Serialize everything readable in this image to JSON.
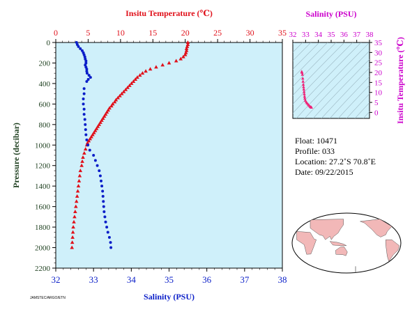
{
  "colors": {
    "temperature": "#e0101a",
    "salinity": "#0a1ec8",
    "pressure_axis": "#1f4020",
    "inset_axis": "#cc00cc",
    "inset_points": "#ee2277",
    "plot_bg": "#cff0fa",
    "map_ocean": "#ffffff",
    "map_land": "#f2b8b8"
  },
  "chart_data": [
    {
      "type": "scatter",
      "title_top": "Insitu Temperature (℃)",
      "xlabel_bottom": "Salinity (PSU)",
      "ylabel": "Pressure (decibar)",
      "temperature_axis": {
        "min": 0,
        "max": 35,
        "ticks": [
          "0",
          "5",
          "10",
          "15",
          "20",
          "25",
          "30",
          "35"
        ]
      },
      "salinity_axis": {
        "min": 32,
        "max": 38,
        "ticks": [
          "32",
          "33",
          "34",
          "35",
          "36",
          "37",
          "38"
        ]
      },
      "pressure_axis": {
        "min": 0,
        "max": 2200,
        "ticks": [
          "0",
          "200",
          "400",
          "600",
          "800",
          "1000",
          "1200",
          "1400",
          "1600",
          "1800",
          "2000",
          "2200"
        ],
        "inverted": true
      },
      "series": [
        {
          "variable": "temperature",
          "marker": "triangle",
          "points": [
            [
              20.4,
              0
            ],
            [
              20.4,
              20
            ],
            [
              20.3,
              40
            ],
            [
              20.2,
              60
            ],
            [
              20.2,
              80
            ],
            [
              20.1,
              100
            ],
            [
              20.0,
              120
            ],
            [
              19.7,
              140
            ],
            [
              19.3,
              160
            ],
            [
              18.6,
              180
            ],
            [
              17.5,
              200
            ],
            [
              16.5,
              220
            ],
            [
              15.5,
              240
            ],
            [
              14.6,
              260
            ],
            [
              13.9,
              280
            ],
            [
              13.4,
              300
            ],
            [
              13.0,
              320
            ],
            [
              12.6,
              340
            ],
            [
              12.3,
              360
            ],
            [
              12.0,
              380
            ],
            [
              11.7,
              400
            ],
            [
              11.4,
              420
            ],
            [
              11.1,
              440
            ],
            [
              10.8,
              460
            ],
            [
              10.5,
              480
            ],
            [
              10.2,
              500
            ],
            [
              9.9,
              520
            ],
            [
              9.6,
              540
            ],
            [
              9.3,
              560
            ],
            [
              9.1,
              580
            ],
            [
              8.8,
              600
            ],
            [
              8.6,
              620
            ],
            [
              8.3,
              640
            ],
            [
              8.1,
              660
            ],
            [
              7.9,
              680
            ],
            [
              7.7,
              700
            ],
            [
              7.5,
              720
            ],
            [
              7.3,
              740
            ],
            [
              7.1,
              760
            ],
            [
              6.9,
              780
            ],
            [
              6.7,
              800
            ],
            [
              6.5,
              820
            ],
            [
              6.3,
              840
            ],
            [
              6.1,
              860
            ],
            [
              5.9,
              880
            ],
            [
              5.7,
              900
            ],
            [
              5.5,
              920
            ],
            [
              5.3,
              940
            ],
            [
              5.1,
              960
            ],
            [
              4.9,
              980
            ],
            [
              4.8,
              1000
            ],
            [
              4.6,
              1040
            ],
            [
              4.4,
              1080
            ],
            [
              4.2,
              1120
            ],
            [
              4.1,
              1160
            ],
            [
              4.0,
              1200
            ],
            [
              3.8,
              1250
            ],
            [
              3.7,
              1300
            ],
            [
              3.6,
              1350
            ],
            [
              3.5,
              1400
            ],
            [
              3.4,
              1450
            ],
            [
              3.3,
              1500
            ],
            [
              3.2,
              1550
            ],
            [
              3.1,
              1600
            ],
            [
              3.0,
              1650
            ],
            [
              2.9,
              1700
            ],
            [
              2.8,
              1750
            ],
            [
              2.7,
              1800
            ],
            [
              2.65,
              1850
            ],
            [
              2.6,
              1900
            ],
            [
              2.55,
              1950
            ],
            [
              2.5,
              2000
            ]
          ]
        },
        {
          "variable": "salinity",
          "marker": "circle",
          "points": [
            [
              32.55,
              0
            ],
            [
              32.57,
              20
            ],
            [
              32.6,
              40
            ],
            [
              32.65,
              60
            ],
            [
              32.7,
              80
            ],
            [
              32.73,
              100
            ],
            [
              32.75,
              120
            ],
            [
              32.77,
              140
            ],
            [
              32.78,
              160
            ],
            [
              32.8,
              180
            ],
            [
              32.8,
              200
            ],
            [
              32.78,
              220
            ],
            [
              32.8,
              240
            ],
            [
              32.82,
              260
            ],
            [
              32.82,
              280
            ],
            [
              32.83,
              300
            ],
            [
              32.88,
              320
            ],
            [
              32.92,
              340
            ],
            [
              32.86,
              360
            ],
            [
              32.82,
              380
            ],
            [
              32.75,
              450
            ],
            [
              32.75,
              500
            ],
            [
              32.73,
              550
            ],
            [
              32.73,
              600
            ],
            [
              32.75,
              650
            ],
            [
              32.75,
              700
            ],
            [
              32.77,
              750
            ],
            [
              32.78,
              800
            ],
            [
              32.79,
              850
            ],
            [
              32.8,
              900
            ],
            [
              32.82,
              950
            ],
            [
              32.85,
              1000
            ],
            [
              32.9,
              1050
            ],
            [
              33.0,
              1100
            ],
            [
              33.05,
              1150
            ],
            [
              33.1,
              1200
            ],
            [
              33.15,
              1250
            ],
            [
              33.18,
              1300
            ],
            [
              33.2,
              1350
            ],
            [
              33.22,
              1400
            ],
            [
              33.24,
              1450
            ],
            [
              33.25,
              1500
            ],
            [
              33.26,
              1550
            ],
            [
              33.27,
              1600
            ],
            [
              33.28,
              1650
            ],
            [
              33.3,
              1700
            ],
            [
              33.32,
              1750
            ],
            [
              33.35,
              1800
            ],
            [
              33.38,
              1850
            ],
            [
              33.42,
              1900
            ],
            [
              33.45,
              1950
            ],
            [
              33.46,
              2000
            ]
          ]
        }
      ]
    },
    {
      "type": "scatter",
      "title": "Salinity (PSU)",
      "ylabel": "Insitu Temperature (℃)",
      "x_axis": {
        "min": 32,
        "max": 38,
        "ticks": [
          "32",
          "33",
          "34",
          "35",
          "36",
          "37",
          "38"
        ]
      },
      "y_axis": {
        "min": -3,
        "max": 35,
        "ticks": [
          "0",
          "5",
          "10",
          "15",
          "20",
          "25",
          "30",
          "35"
        ]
      },
      "grid": "density isolines",
      "points": [
        [
          32.7,
          20.4
        ],
        [
          32.72,
          20.0
        ],
        [
          32.75,
          19.0
        ],
        [
          32.78,
          17.0
        ],
        [
          32.8,
          15.5
        ],
        [
          32.82,
          14.0
        ],
        [
          32.84,
          12.8
        ],
        [
          32.86,
          11.6
        ],
        [
          32.88,
          10.4
        ],
        [
          32.9,
          9.2
        ],
        [
          32.92,
          8.0
        ],
        [
          32.94,
          7.0
        ],
        [
          32.98,
          6.0
        ],
        [
          33.05,
          5.2
        ],
        [
          33.12,
          4.6
        ],
        [
          33.2,
          4.0
        ],
        [
          33.28,
          3.4
        ],
        [
          33.36,
          2.9
        ],
        [
          33.42,
          2.6
        ],
        [
          33.46,
          2.5
        ]
      ]
    }
  ],
  "info": {
    "float": "Float:  10471",
    "profile": "Profile:  033",
    "location": "Location:  27.2˚S  70.8˚E",
    "date": "Date:  09/22/2015"
  },
  "map": {
    "marker_symbol": "★",
    "marker_lat": -27.2,
    "marker_lon": 70.8
  },
  "footer_text": "JAMSTEC/ARGO/ETN"
}
